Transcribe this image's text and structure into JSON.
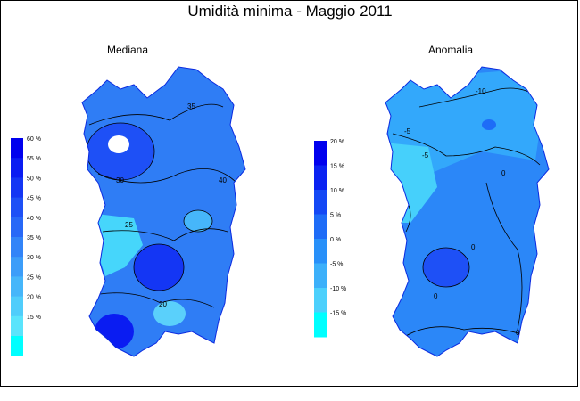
{
  "title": "Umidità minima - Maggio 2011",
  "panels": [
    {
      "title": "Mediana",
      "legend": {
        "labels": [
          "60 %",
          "55 %",
          "50 %",
          "45 %",
          "40 %",
          "35 %",
          "30 %",
          "25 %",
          "20 %",
          "15 %"
        ],
        "colors": [
          "#0000ee",
          "#0a1cf2",
          "#1436f4",
          "#1e50f6",
          "#2868f7",
          "#3284f8",
          "#3c9df9",
          "#46b6fa",
          "#50cdfb",
          "#5ae4fc",
          "#00ffff"
        ]
      },
      "contour_labels": [
        "35",
        "30",
        "40",
        "25",
        "20"
      ]
    },
    {
      "title": "Anomalia",
      "legend": {
        "labels": [
          "20 %",
          "15 %",
          "10 %",
          "5 %",
          "0 %",
          "-5 %",
          "-10 %",
          "-15 %"
        ],
        "colors": [
          "#0000ee",
          "#0a22f2",
          "#1448f5",
          "#1e6cf7",
          "#2890f9",
          "#3cb0fa",
          "#4cd0fc",
          "#00ffff"
        ]
      },
      "contour_labels": [
        "-10",
        "-5",
        "0"
      ]
    }
  ]
}
